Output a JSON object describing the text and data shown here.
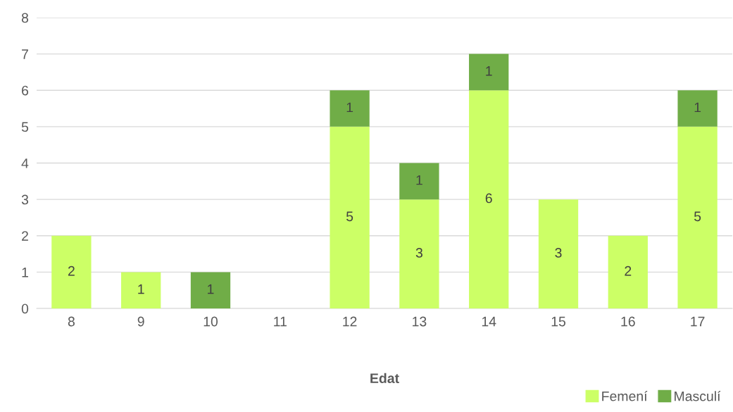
{
  "chart_data": {
    "type": "bar",
    "stacked": true,
    "xlabel": "Edat",
    "categories": [
      "8",
      "9",
      "10",
      "11",
      "12",
      "13",
      "14",
      "15",
      "16",
      "17"
    ],
    "series": [
      {
        "name": "Femení",
        "color": "#ccff66",
        "values": [
          2,
          1,
          0,
          0,
          5,
          3,
          6,
          3,
          2,
          5
        ],
        "value_labels": [
          "2",
          "1",
          null,
          null,
          "5",
          "3",
          "6",
          "3",
          "2",
          "5"
        ]
      },
      {
        "name": "Masculí",
        "color": "#70ad47",
        "values": [
          0,
          0,
          1,
          0,
          1,
          1,
          1,
          0,
          0,
          1
        ],
        "value_labels": [
          null,
          null,
          "1",
          null,
          "1",
          "1",
          "1",
          null,
          null,
          "1"
        ]
      }
    ],
    "ylim": [
      0,
      8
    ],
    "yticks": [
      0,
      1,
      2,
      3,
      4,
      5,
      6,
      7,
      8
    ],
    "grid": "y",
    "legend": "bottom right"
  }
}
